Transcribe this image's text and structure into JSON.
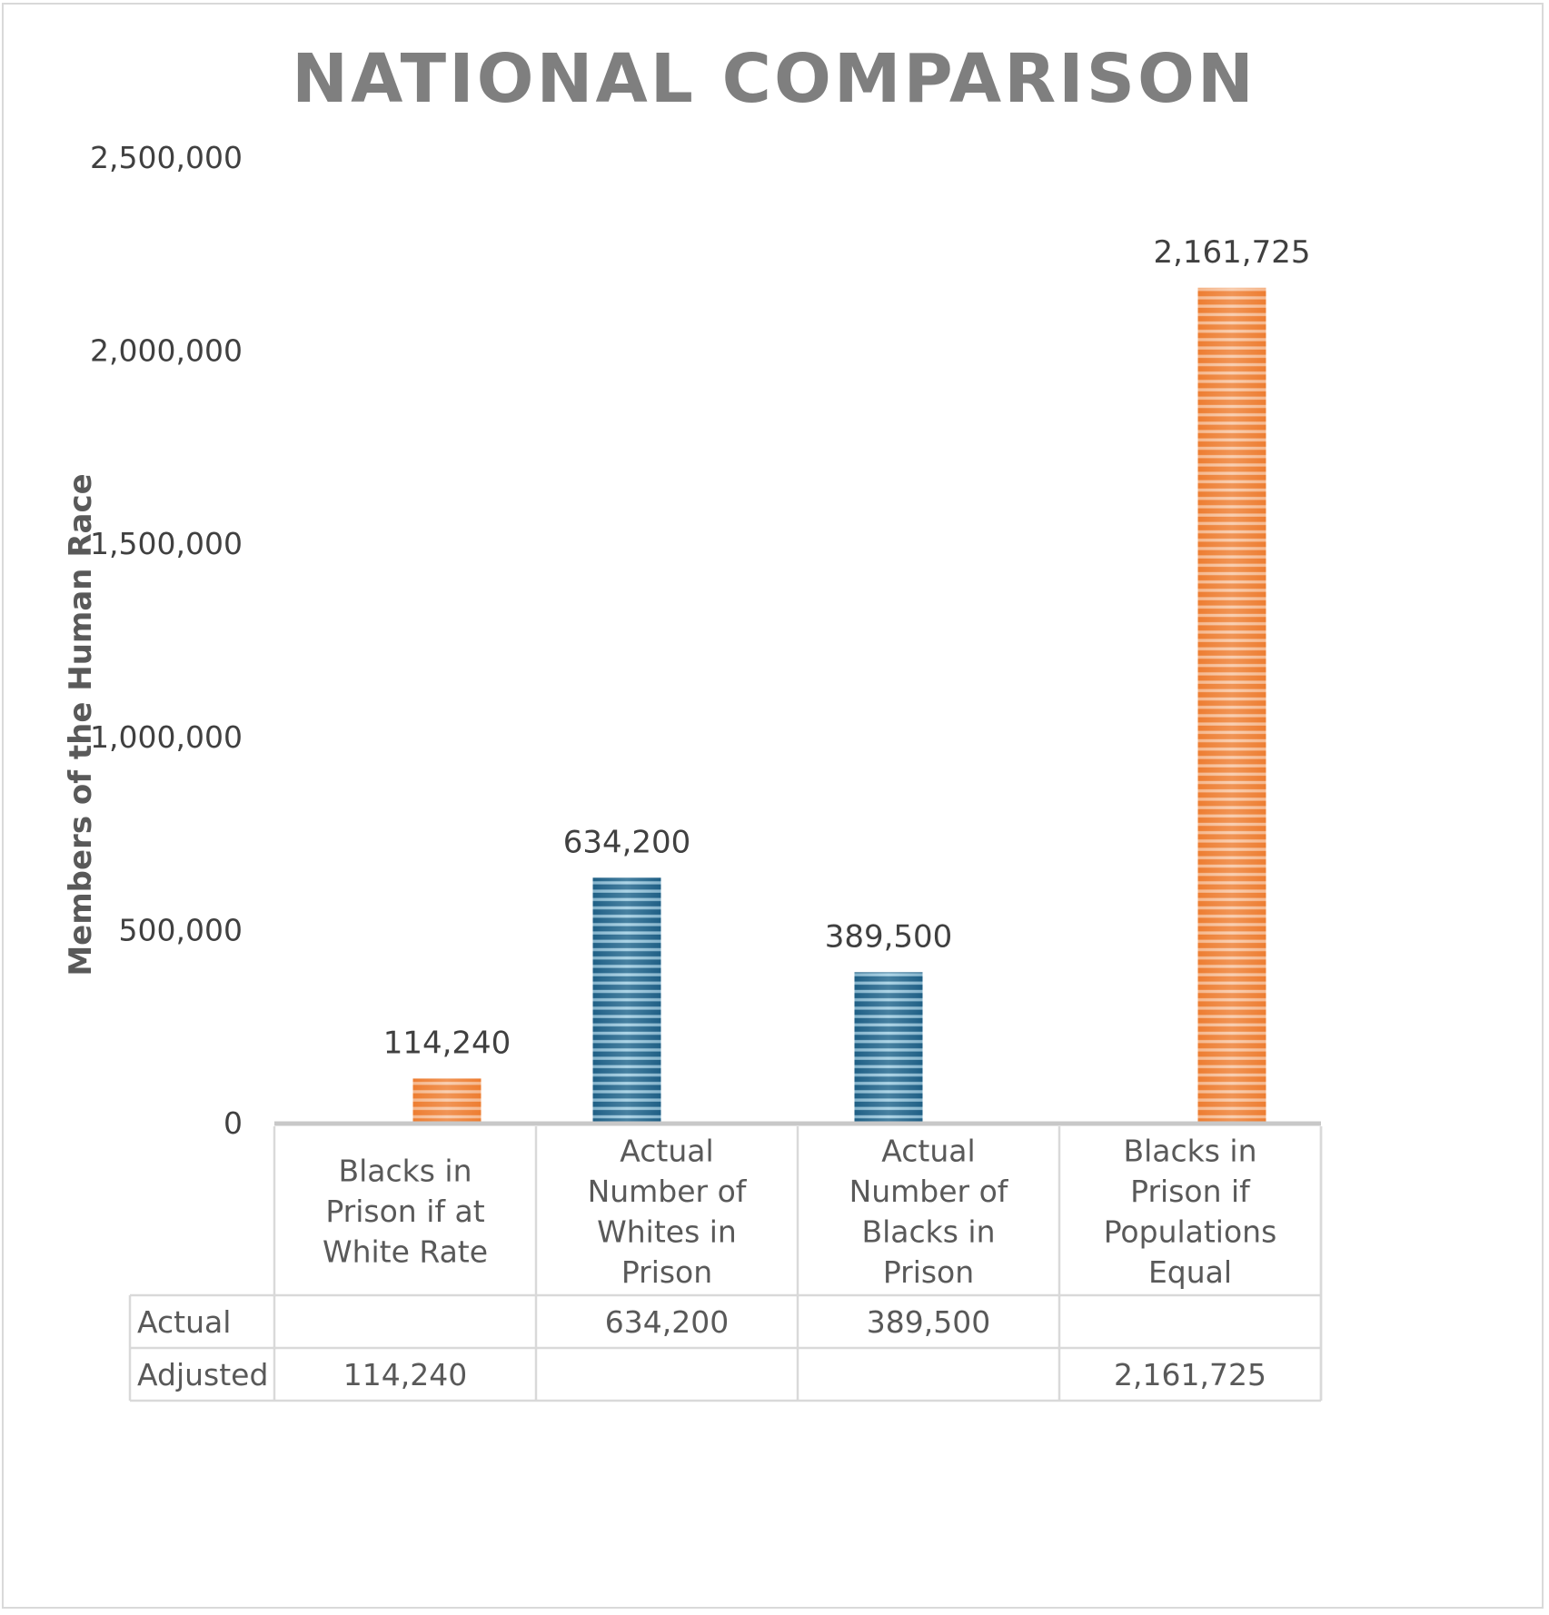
{
  "chart_data": {
    "type": "bar",
    "title": "NATIONAL COMPARISON",
    "xlabel": "",
    "ylabel": "Members of the Human Race",
    "ylim": [
      0,
      2500000
    ],
    "yticks": [
      0,
      500000,
      1000000,
      1500000,
      2000000,
      2500000
    ],
    "ytick_labels": [
      "0",
      "500,000",
      "1,000,000",
      "1,500,000",
      "2,000,000",
      "2,500,000"
    ],
    "grid": false,
    "categories": [
      "Blacks in Prison if at White Rate",
      "Actual Number of Whites in Prison",
      "Actual Number of Blacks in Prison",
      "Blacks in Prison if Populations Equal"
    ],
    "category_lines": [
      [
        "Blacks in",
        "Prison if at",
        "White Rate"
      ],
      [
        "Actual",
        "Number of",
        "Whites in",
        "Prison"
      ],
      [
        "Actual",
        "Number of",
        "Blacks in",
        "Prison"
      ],
      [
        "Blacks in",
        "Prison if",
        "Populations",
        "Equal"
      ]
    ],
    "series": [
      {
        "name": "Actual",
        "color": "#1F5F85",
        "stripe_color": "#BFE3F2",
        "values": [
          null,
          634200,
          389500,
          null
        ],
        "labels": [
          "",
          "634,200",
          "389,500",
          ""
        ]
      },
      {
        "name": "Adjusted",
        "color": "#ED7D31",
        "stripe_color": "#FBD9C2",
        "values": [
          114240,
          null,
          null,
          2161725
        ],
        "labels": [
          "114,240",
          "",
          "",
          "2,161,725"
        ]
      }
    ],
    "data_table": {
      "rows": [
        {
          "name": "Actual",
          "cells": [
            "",
            "634,200",
            "389,500",
            ""
          ]
        },
        {
          "name": "Adjusted",
          "cells": [
            "114,240",
            "",
            "",
            "2,161,725"
          ]
        }
      ]
    },
    "legend": "data-table"
  }
}
